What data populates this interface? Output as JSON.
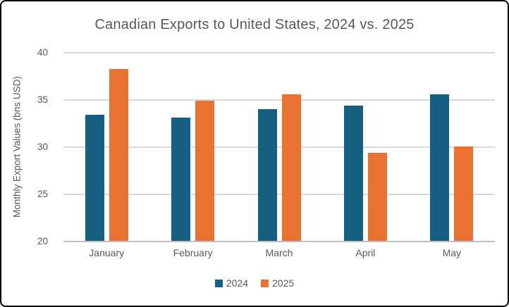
{
  "chart_data": {
    "type": "bar",
    "title": "Canadian Exports to United States, 2024 vs. 2025",
    "xlabel": "",
    "ylabel": "Monthly Export Values (bns USD)",
    "categories": [
      "January",
      "February",
      "March",
      "April",
      "May"
    ],
    "series": [
      {
        "name": "2024",
        "color": "#156082",
        "values": [
          33.4,
          33.1,
          34.0,
          34.4,
          35.6
        ]
      },
      {
        "name": "2025",
        "color": "#E97132",
        "values": [
          38.3,
          34.9,
          35.6,
          29.4,
          30.1
        ]
      }
    ],
    "ylim": [
      20,
      40
    ],
    "y_ticks": [
      40,
      35,
      30,
      25,
      20
    ],
    "grid": true,
    "legend_position": "bottom"
  },
  "colors": {
    "series_2024": "#156082",
    "series_2025": "#E97132",
    "gridline": "#D9D9D9",
    "axis_line": "#BFBFBF",
    "text": "#595959",
    "background": "#FFFFFF",
    "frame_border": "#000000"
  }
}
